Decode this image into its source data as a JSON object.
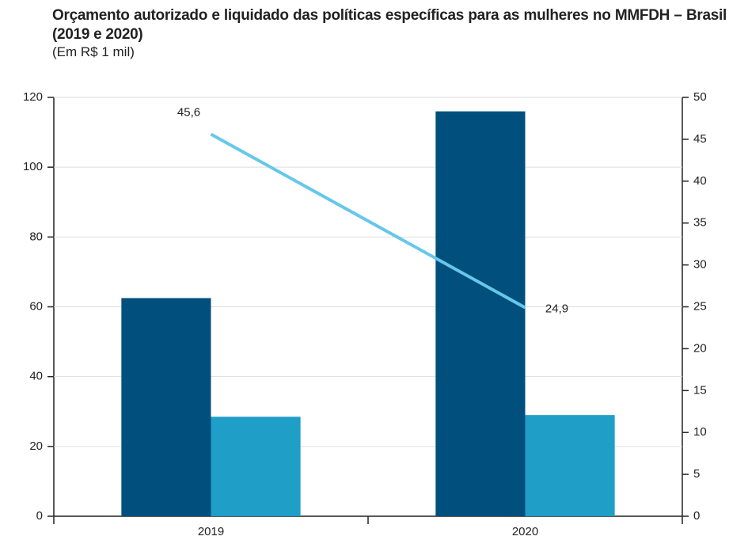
{
  "chart_data": {
    "type": "bar",
    "title": "Orçamento autorizado e liquidado das políticas específicas para as mulheres no MMFDH – Brasil (2019 e 2020)",
    "subtitle": "(Em R$ 1 mil)",
    "categories": [
      "2019",
      "2020"
    ],
    "series": [
      {
        "color": "#004f7c",
        "values": [
          62.5,
          116
        ]
      },
      {
        "color": "#1f9ec8",
        "values": [
          28.5,
          29
        ]
      },
      {
        "type": "line",
        "axis": "y2",
        "color": "#66c7ea",
        "values": [
          45.6,
          24.9
        ],
        "value_labels": [
          "45,6",
          "24,9"
        ]
      }
    ],
    "ylim": [
      0,
      120
    ],
    "yticks": [
      0,
      20,
      40,
      60,
      80,
      100,
      120
    ],
    "y2lim": [
      0,
      50
    ],
    "y2ticks": [
      0,
      5,
      10,
      15,
      20,
      25,
      30,
      35,
      40,
      45,
      50
    ],
    "grid": true
  }
}
